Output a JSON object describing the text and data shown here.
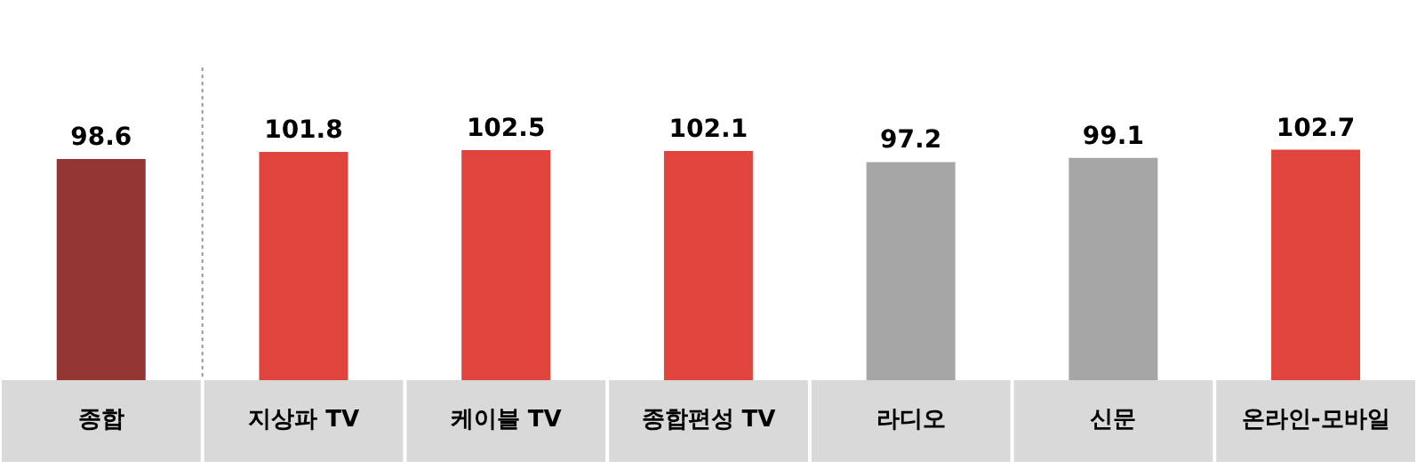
{
  "chart_data": {
    "type": "bar",
    "categories": [
      "종합",
      "지상파 TV",
      "케이블 TV",
      "종합편성 TV",
      "라디오",
      "신문",
      "온라인-모바일"
    ],
    "values": [
      98.6,
      101.8,
      102.5,
      102.1,
      97.2,
      99.1,
      102.7
    ],
    "colors": [
      "#943634",
      "#e0443c",
      "#e0443c",
      "#e0443c",
      "#a6a6a6",
      "#a6a6a6",
      "#e0443c"
    ],
    "data_labels": true
  }
}
